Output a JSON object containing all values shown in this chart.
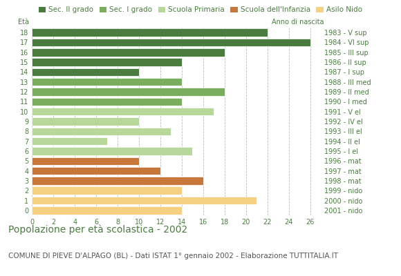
{
  "ages": [
    18,
    17,
    16,
    15,
    14,
    13,
    12,
    11,
    10,
    9,
    8,
    7,
    6,
    5,
    4,
    3,
    2,
    1,
    0
  ],
  "values": [
    22,
    26,
    18,
    14,
    10,
    14,
    18,
    14,
    17,
    10,
    13,
    7,
    15,
    10,
    12,
    16,
    14,
    21,
    14
  ],
  "years": [
    "1983 - V sup",
    "1984 - VI sup",
    "1985 - III sup",
    "1986 - II sup",
    "1987 - I sup",
    "1988 - III med",
    "1989 - II med",
    "1990 - I med",
    "1991 - V el",
    "1992 - IV el",
    "1993 - III el",
    "1994 - II el",
    "1995 - I el",
    "1996 - mat",
    "1997 - mat",
    "1998 - mat",
    "1999 - nido",
    "2000 - nido",
    "2001 - nido"
  ],
  "colors": [
    "#4a7c3f",
    "#4a7c3f",
    "#4a7c3f",
    "#4a7c3f",
    "#4a7c3f",
    "#7aad5e",
    "#7aad5e",
    "#7aad5e",
    "#b8d89b",
    "#b8d89b",
    "#b8d89b",
    "#b8d89b",
    "#b8d89b",
    "#c8773a",
    "#c8773a",
    "#c8773a",
    "#f5d080",
    "#f5d080",
    "#f5d080"
  ],
  "legend_labels": [
    "Sec. II grado",
    "Sec. I grado",
    "Scuola Primaria",
    "Scuola dell'Infanzia",
    "Asilo Nido"
  ],
  "legend_colors": [
    "#4a7c3f",
    "#7aad5e",
    "#b8d89b",
    "#c8773a",
    "#f5d080"
  ],
  "title": "Popolazione per età scolastica - 2002",
  "subtitle": "COMUNE DI PIEVE D'ALPAGO (BL) - Dati ISTAT 1° gennaio 2002 - Elaborazione TUTTITALIA.IT",
  "label_age": "Età",
  "label_year": "Anno di nascita",
  "xlim": [
    0,
    27
  ],
  "xticks": [
    0,
    2,
    4,
    6,
    8,
    10,
    12,
    14,
    16,
    18,
    20,
    22,
    24,
    26
  ],
  "bar_height": 0.8,
  "background_color": "#ffffff",
  "grid_color": "#bbbbbb",
  "text_color": "#4a7c3f",
  "title_color": "#4a7c3f",
  "subtitle_color": "#555555",
  "title_fontsize": 10,
  "subtitle_fontsize": 7.5,
  "tick_fontsize": 7,
  "legend_fontsize": 7.5
}
